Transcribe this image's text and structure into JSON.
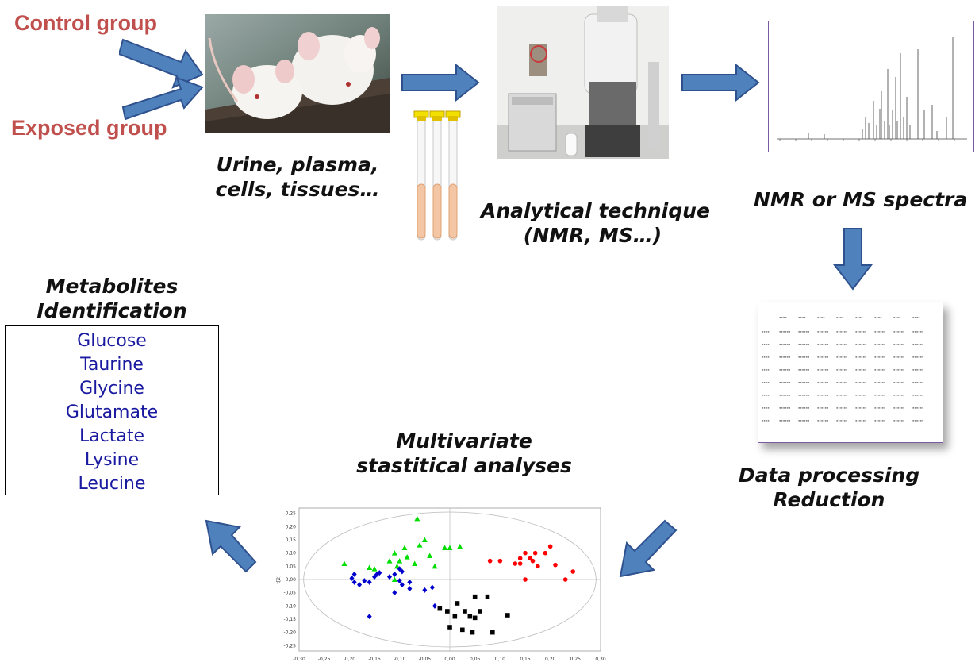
{
  "groups": {
    "control": "Control group",
    "exposed": "Exposed group"
  },
  "captions": {
    "samples": [
      "Urine, plasma,",
      "cells, tissues…"
    ],
    "technique": [
      "Analytical technique",
      "(NMR, MS…)"
    ],
    "spectra": "NMR or MS spectra",
    "processing": [
      "Data processing",
      "Reduction"
    ],
    "multivariate": [
      "Multivariate",
      "stastitical analyses"
    ],
    "metabolites": [
      "Metabolites",
      "Identification"
    ]
  },
  "metabolites": [
    "Glucose",
    "Taurine",
    "Glycine",
    "Glutamate",
    "Lactate",
    "Lysine",
    "Leucine"
  ],
  "icons": [
    "mice-photo",
    "sample-tubes-icon",
    "nmr-spectrometer-photo",
    "nmr-spectrum-plot",
    "data-matrix-table",
    "pca-score-plot",
    "flow-arrow-icon"
  ],
  "colors": {
    "arrow": "#4f81bd",
    "group_label": "#c0504d",
    "metabolite_text": "#1a1aa0"
  },
  "pca_axis": {
    "x_ticks": [
      "-0,30",
      "-0,25",
      "-0,20",
      "-0,15",
      "-0,10",
      "-0,05",
      "0,00",
      "0,05",
      "0,10",
      "0,15",
      "0,20",
      "0,25",
      "0,30"
    ],
    "y_ticks": [
      "0,25",
      "0,20",
      "0,15",
      "0,10",
      "0,05",
      "-0,00",
      "-0,05",
      "-0,10",
      "-0,15",
      "-0,20",
      "-0,25"
    ],
    "y_label": "t[2]"
  },
  "chart_data": {
    "type": "scatter",
    "xlim": [
      -0.3,
      0.3
    ],
    "ylim": [
      -0.27,
      0.27
    ],
    "grid": false,
    "series": [
      {
        "color": "#00dd00",
        "marker": "triangle",
        "points": [
          [
            -0.21,
            0.06
          ],
          [
            -0.16,
            0.045
          ],
          [
            -0.15,
            0.04
          ],
          [
            -0.12,
            0.07
          ],
          [
            -0.11,
            0.1
          ],
          [
            -0.105,
            0.05
          ],
          [
            -0.1,
            0.07
          ],
          [
            -0.09,
            0.12
          ],
          [
            -0.085,
            0.085
          ],
          [
            -0.07,
            0.06
          ],
          [
            -0.06,
            0.13
          ],
          [
            -0.05,
            0.15
          ],
          [
            -0.04,
            0.09
          ],
          [
            -0.03,
            0.05
          ],
          [
            -0.065,
            0.23
          ],
          [
            -0.01,
            0.12
          ],
          [
            0.0,
            0.12
          ],
          [
            0.02,
            0.125
          ],
          [
            -0.11,
            0.0
          ]
        ]
      },
      {
        "color": "#0000cc",
        "marker": "diamond",
        "points": [
          [
            -0.19,
            0.02
          ],
          [
            -0.195,
            0.005
          ],
          [
            -0.19,
            -0.01
          ],
          [
            -0.18,
            -0.02
          ],
          [
            -0.17,
            -0.005
          ],
          [
            -0.16,
            -0.01
          ],
          [
            -0.15,
            0.01
          ],
          [
            -0.145,
            0.02
          ],
          [
            -0.14,
            0.025
          ],
          [
            -0.12,
            0.01
          ],
          [
            -0.11,
            0.02
          ],
          [
            -0.1,
            0.04
          ],
          [
            -0.095,
            0.03
          ],
          [
            -0.1,
            -0.005
          ],
          [
            -0.095,
            -0.02
          ],
          [
            -0.08,
            -0.01
          ],
          [
            -0.08,
            -0.035
          ],
          [
            -0.05,
            -0.04
          ],
          [
            -0.035,
            -0.03
          ],
          [
            -0.11,
            -0.05
          ],
          [
            -0.03,
            -0.1
          ],
          [
            -0.16,
            -0.14
          ]
        ]
      },
      {
        "color": "#ff0000",
        "marker": "circle",
        "points": [
          [
            0.08,
            0.07
          ],
          [
            0.1,
            0.07
          ],
          [
            0.13,
            0.06
          ],
          [
            0.14,
            0.06
          ],
          [
            0.14,
            0.08
          ],
          [
            0.15,
            0.1
          ],
          [
            0.16,
            0.08
          ],
          [
            0.165,
            0.07
          ],
          [
            0.17,
            0.1
          ],
          [
            0.19,
            0.1
          ],
          [
            0.2,
            0.125
          ],
          [
            0.21,
            0.055
          ],
          [
            0.23,
            0.0
          ],
          [
            0.245,
            0.03
          ],
          [
            0.15,
            0.0
          ],
          [
            0.175,
            0.05
          ]
        ]
      },
      {
        "color": "#000000",
        "marker": "square",
        "points": [
          [
            -0.02,
            -0.11
          ],
          [
            -0.005,
            -0.12
          ],
          [
            0.01,
            -0.14
          ],
          [
            0.0,
            -0.18
          ],
          [
            0.03,
            -0.12
          ],
          [
            0.04,
            -0.14
          ],
          [
            0.05,
            -0.145
          ],
          [
            0.06,
            -0.12
          ],
          [
            0.05,
            -0.065
          ],
          [
            0.075,
            -0.065
          ],
          [
            0.045,
            -0.2
          ],
          [
            0.085,
            -0.2
          ],
          [
            0.115,
            -0.135
          ],
          [
            0.025,
            -0.19
          ],
          [
            0.015,
            -0.09
          ]
        ]
      }
    ]
  }
}
